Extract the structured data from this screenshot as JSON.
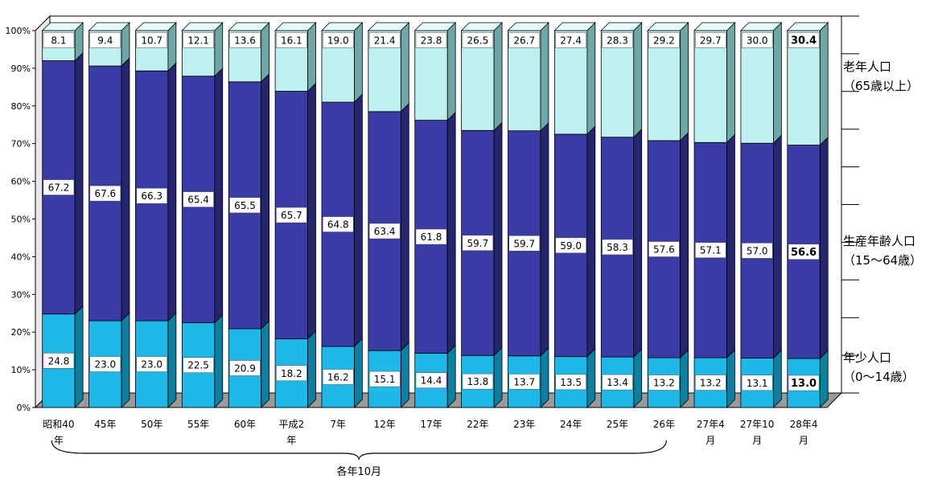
{
  "chart_data": {
    "type": "bar",
    "stacked": true,
    "percent": true,
    "categories": [
      [
        "昭和40",
        "年"
      ],
      [
        "45年"
      ],
      [
        "50年"
      ],
      [
        "55年"
      ],
      [
        "60年"
      ],
      [
        "平成2",
        "年"
      ],
      [
        "7年"
      ],
      [
        "12年"
      ],
      [
        "17年"
      ],
      [
        "22年"
      ],
      [
        "23年"
      ],
      [
        "24年"
      ],
      [
        "25年"
      ],
      [
        "26年"
      ],
      [
        "27年4",
        "月"
      ],
      [
        "27年10",
        "月"
      ],
      [
        "28年4",
        "月"
      ]
    ],
    "series": [
      {
        "name": "年少人口（0～14歳）",
        "legend_lines": [
          "年少人口",
          "（0～14歳）"
        ],
        "values": [
          "24.8",
          "23.0",
          "23.0",
          "22.5",
          "20.9",
          "18.2",
          "16.2",
          "15.1",
          "14.4",
          "13.8",
          "13.7",
          "13.5",
          "13.4",
          "13.2",
          "13.2",
          "13.1",
          "13.0"
        ],
        "color_front": "#1fb8e6",
        "color_side": "#0f7f9f",
        "color_top": "#7fdcf5"
      },
      {
        "name": "生産年齢人口（15～64歳）",
        "legend_lines": [
          "生産年齢人口",
          "（15～64歳）"
        ],
        "values": [
          "67.2",
          "67.6",
          "66.3",
          "65.4",
          "65.5",
          "65.7",
          "64.8",
          "63.4",
          "61.8",
          "59.7",
          "59.7",
          "59.0",
          "58.3",
          "57.6",
          "57.1",
          "57.0",
          "56.6"
        ],
        "color_front": "#3b3ba6",
        "color_side": "#26266e",
        "color_top": "#7474cc"
      },
      {
        "name": "老年人口（65歳以上）",
        "legend_lines": [
          "老年人口",
          "（65歳以上）"
        ],
        "values": [
          "8.1",
          "9.4",
          "10.7",
          "12.1",
          "13.6",
          "16.1",
          "19.0",
          "21.4",
          "23.8",
          "26.5",
          "26.7",
          "27.4",
          "28.3",
          "29.2",
          "29.7",
          "30.0",
          "30.4"
        ],
        "color_front": "#bfefef",
        "color_side": "#6fa6a6",
        "color_top": "#e6fbfb"
      }
    ],
    "y_ticks": [
      "0%",
      "10%",
      "20%",
      "30%",
      "40%",
      "50%",
      "60%",
      "70%",
      "80%",
      "90%",
      "100%"
    ],
    "ylim": [
      0,
      100
    ],
    "grid": false,
    "legend": "right",
    "highlight_last": true,
    "brace_label": "各年10月",
    "brace_span": [
      "昭和40年",
      "26年"
    ]
  }
}
